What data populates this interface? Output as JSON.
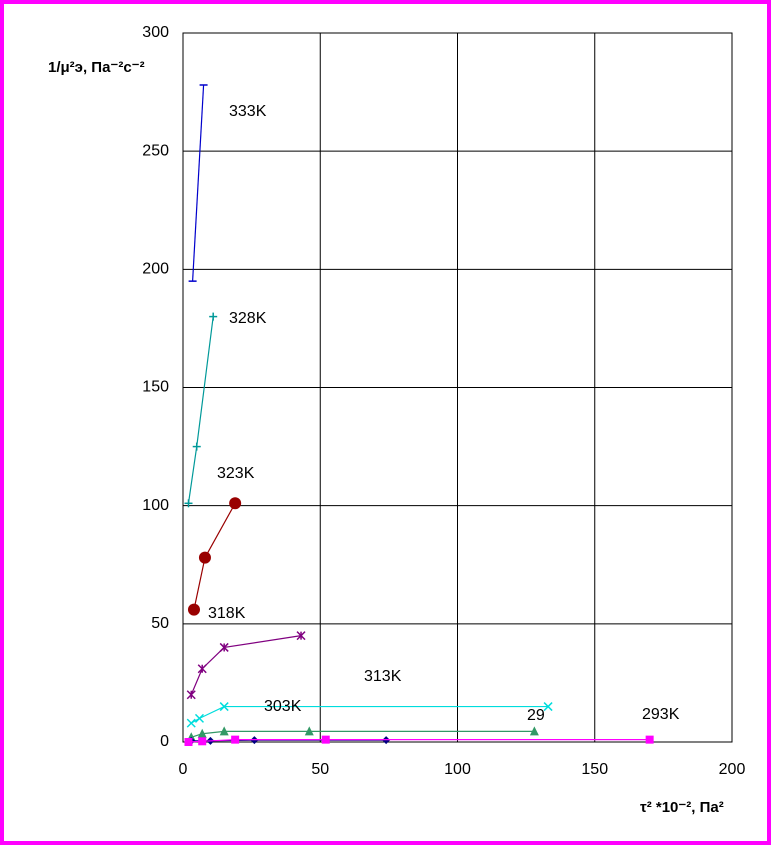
{
  "chart_data": {
    "type": "line",
    "x_label": "τ² *10⁻², Па²",
    "y_label": "1/μ²э, Па⁻²с⁻²",
    "xlim": [
      0,
      200
    ],
    "xticks": [
      0,
      50,
      100,
      150,
      200
    ],
    "ylim": [
      0,
      300
    ],
    "yticks": [
      0,
      50,
      100,
      150,
      200,
      250,
      300
    ],
    "grid": true,
    "series": [
      {
        "color": "#0000cc",
        "marker": "dash",
        "x": [
          3.5,
          7.5
        ],
        "values": [
          195,
          278
        ]
      },
      {
        "color": "#009999",
        "marker": "plus",
        "x": [
          2,
          5,
          11
        ],
        "values": [
          101,
          125,
          180
        ]
      },
      {
        "color": "#990000",
        "marker": "circle",
        "x": [
          4,
          8,
          19
        ],
        "values": [
          56,
          78,
          101
        ]
      },
      {
        "color": "#800080",
        "marker": "asterisk",
        "x": [
          3,
          7,
          15,
          43
        ],
        "values": [
          20,
          31,
          40,
          45
        ]
      },
      {
        "color": "#00dddd",
        "marker": "x",
        "x": [
          3,
          6,
          15,
          133
        ],
        "values": [
          8,
          10,
          15,
          15
        ]
      },
      {
        "color": "#339966",
        "marker": "triangle",
        "x": [
          3,
          7,
          15,
          46,
          128
        ],
        "values": [
          2,
          3.5,
          4.5,
          4.5,
          4.5
        ]
      },
      {
        "color": "#000080",
        "marker": "diamond",
        "x": [
          3,
          10,
          26,
          74
        ],
        "values": [
          0.5,
          0.5,
          0.8,
          0.8
        ]
      },
      {
        "color": "#ff00ff",
        "marker": "square",
        "x": [
          2,
          7,
          19,
          52,
          170
        ],
        "values": [
          0,
          0.3,
          1,
          1,
          1
        ]
      }
    ],
    "annotations": [
      "333K",
      "328K",
      "323K",
      "318K",
      "313K",
      "303K",
      "29",
      "293K"
    ]
  }
}
